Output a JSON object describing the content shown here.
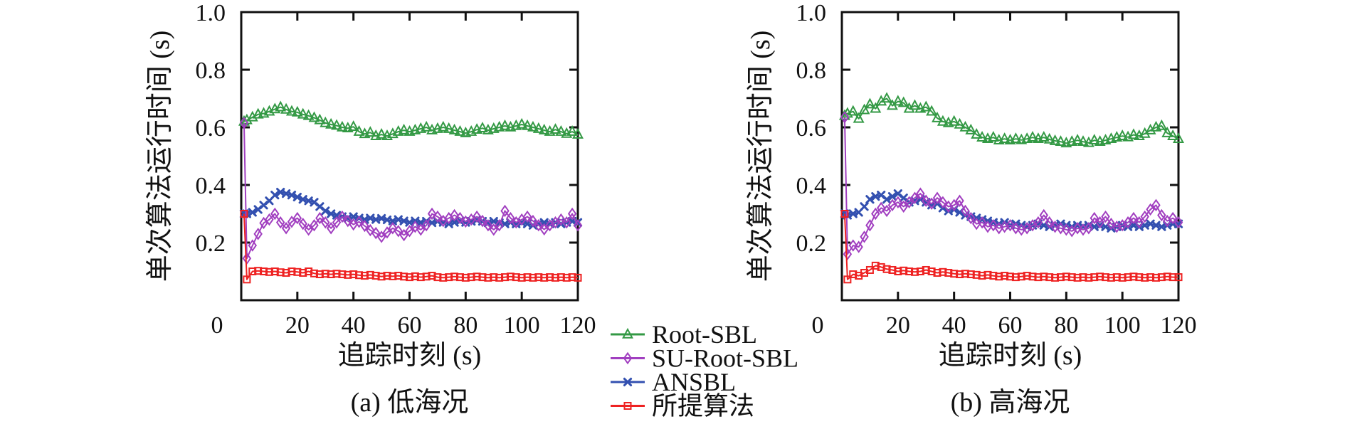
{
  "figure": {
    "background": "#ffffff",
    "axis_color": "#111111"
  },
  "legend": {
    "position": "bottom-center",
    "entries": [
      {
        "id": "root-sbl",
        "label": "Root-SBL",
        "color": "#339944",
        "marker": "triangle-open"
      },
      {
        "id": "su-root-sbl",
        "label": "SU-Root-SBL",
        "color": "#A13FC0",
        "marker": "diamond-open"
      },
      {
        "id": "ansbl",
        "label": "ANSBL",
        "color": "#3350B0",
        "marker": "x-cross"
      },
      {
        "id": "proposed",
        "label": "所提算法",
        "color": "#EE2222",
        "marker": "square-open"
      }
    ]
  },
  "chart_data": [
    {
      "id": "a",
      "type": "line",
      "caption": "(a) 低海况",
      "xlabel": "追踪时刻 (s)",
      "ylabel": "单次算法运行时间 (s)",
      "xlim": [
        0,
        120
      ],
      "ylim": [
        0,
        1.0
      ],
      "xticks": [
        0,
        20,
        40,
        60,
        80,
        100,
        120
      ],
      "yticks": [
        0.2,
        0.4,
        0.6,
        0.8,
        1.0
      ],
      "grid": false,
      "x": [
        1,
        2,
        4,
        6,
        8,
        10,
        12,
        14,
        16,
        18,
        20,
        22,
        24,
        26,
        28,
        30,
        32,
        34,
        36,
        38,
        40,
        42,
        44,
        46,
        48,
        50,
        52,
        54,
        56,
        58,
        60,
        62,
        64,
        66,
        68,
        70,
        72,
        74,
        76,
        78,
        80,
        82,
        84,
        86,
        88,
        90,
        92,
        94,
        96,
        98,
        100,
        102,
        104,
        106,
        108,
        110,
        112,
        114,
        116,
        118,
        120
      ],
      "series": [
        {
          "name": "Root-SBL",
          "color": "#339944",
          "marker": "triangle-open",
          "values": [
            0.62,
            0.625,
            0.635,
            0.645,
            0.648,
            0.655,
            0.663,
            0.67,
            0.662,
            0.655,
            0.652,
            0.645,
            0.64,
            0.633,
            0.625,
            0.615,
            0.61,
            0.606,
            0.6,
            0.597,
            0.602,
            0.585,
            0.577,
            0.582,
            0.57,
            0.575,
            0.57,
            0.577,
            0.585,
            0.59,
            0.585,
            0.59,
            0.595,
            0.6,
            0.59,
            0.595,
            0.6,
            0.595,
            0.59,
            0.585,
            0.58,
            0.585,
            0.592,
            0.597,
            0.59,
            0.595,
            0.6,
            0.605,
            0.6,
            0.605,
            0.61,
            0.605,
            0.6,
            0.595,
            0.59,
            0.585,
            0.592,
            0.585,
            0.578,
            0.585,
            0.575
          ]
        },
        {
          "name": "ANSBL",
          "color": "#3350B0",
          "marker": "x-cross",
          "values": [
            0.3,
            0.3,
            0.305,
            0.315,
            0.33,
            0.345,
            0.365,
            0.375,
            0.37,
            0.365,
            0.358,
            0.35,
            0.345,
            0.34,
            0.325,
            0.31,
            0.3,
            0.295,
            0.29,
            0.285,
            0.29,
            0.285,
            0.28,
            0.285,
            0.28,
            0.284,
            0.279,
            0.275,
            0.28,
            0.275,
            0.27,
            0.275,
            0.27,
            0.274,
            0.269,
            0.274,
            0.27,
            0.265,
            0.27,
            0.275,
            0.27,
            0.274,
            0.279,
            0.274,
            0.269,
            0.274,
            0.269,
            0.265,
            0.27,
            0.265,
            0.27,
            0.265,
            0.26,
            0.265,
            0.27,
            0.265,
            0.27,
            0.265,
            0.27,
            0.274,
            0.27
          ]
        },
        {
          "name": "SU-Root-SBL",
          "color": "#A13FC0",
          "marker": "diamond-open",
          "values": [
            0.615,
            0.145,
            0.19,
            0.23,
            0.268,
            0.28,
            0.3,
            0.27,
            0.25,
            0.272,
            0.285,
            0.265,
            0.245,
            0.26,
            0.285,
            0.27,
            0.25,
            0.27,
            0.29,
            0.275,
            0.263,
            0.272,
            0.258,
            0.243,
            0.233,
            0.22,
            0.235,
            0.25,
            0.24,
            0.226,
            0.24,
            0.255,
            0.245,
            0.26,
            0.3,
            0.29,
            0.275,
            0.285,
            0.295,
            0.285,
            0.273,
            0.28,
            0.29,
            0.275,
            0.26,
            0.245,
            0.26,
            0.31,
            0.285,
            0.27,
            0.28,
            0.29,
            0.275,
            0.26,
            0.246,
            0.26,
            0.27,
            0.28,
            0.27,
            0.3,
            0.26
          ]
        },
        {
          "name": "所提算法",
          "color": "#EE2222",
          "marker": "square-open",
          "values": [
            0.3,
            0.072,
            0.1,
            0.102,
            0.1,
            0.098,
            0.1,
            0.097,
            0.095,
            0.1,
            0.098,
            0.095,
            0.1,
            0.093,
            0.09,
            0.092,
            0.09,
            0.092,
            0.09,
            0.088,
            0.09,
            0.087,
            0.085,
            0.088,
            0.085,
            0.082,
            0.085,
            0.083,
            0.085,
            0.082,
            0.08,
            0.083,
            0.08,
            0.082,
            0.085,
            0.08,
            0.078,
            0.08,
            0.082,
            0.08,
            0.078,
            0.08,
            0.082,
            0.08,
            0.078,
            0.08,
            0.078,
            0.08,
            0.082,
            0.08,
            0.078,
            0.08,
            0.078,
            0.08,
            0.078,
            0.08,
            0.078,
            0.08,
            0.078,
            0.08,
            0.078
          ]
        }
      ]
    },
    {
      "id": "b",
      "type": "line",
      "caption": "(b) 高海况",
      "xlabel": "追踪时刻 (s)",
      "ylabel": "单次算法运行时间 (s)",
      "xlim": [
        0,
        120
      ],
      "ylim": [
        0,
        1.0
      ],
      "xticks": [
        0,
        20,
        40,
        60,
        80,
        100,
        120
      ],
      "yticks": [
        0.2,
        0.4,
        0.6,
        0.8,
        1.0
      ],
      "grid": false,
      "x": [
        1,
        2,
        4,
        6,
        8,
        10,
        12,
        14,
        16,
        18,
        20,
        22,
        24,
        26,
        28,
        30,
        32,
        34,
        36,
        38,
        40,
        42,
        44,
        46,
        48,
        50,
        52,
        54,
        56,
        58,
        60,
        62,
        64,
        66,
        68,
        70,
        72,
        74,
        76,
        78,
        80,
        82,
        84,
        86,
        88,
        90,
        92,
        94,
        96,
        98,
        100,
        102,
        104,
        106,
        108,
        110,
        112,
        114,
        116,
        118,
        120
      ],
      "series": [
        {
          "name": "Root-SBL",
          "color": "#339944",
          "marker": "triangle-open",
          "values": [
            0.64,
            0.648,
            0.655,
            0.63,
            0.66,
            0.68,
            0.665,
            0.69,
            0.7,
            0.675,
            0.69,
            0.685,
            0.665,
            0.675,
            0.665,
            0.67,
            0.655,
            0.632,
            0.62,
            0.615,
            0.62,
            0.61,
            0.6,
            0.59,
            0.575,
            0.565,
            0.56,
            0.565,
            0.555,
            0.56,
            0.555,
            0.56,
            0.556,
            0.56,
            0.565,
            0.56,
            0.565,
            0.558,
            0.553,
            0.55,
            0.545,
            0.55,
            0.555,
            0.55,
            0.546,
            0.555,
            0.55,
            0.555,
            0.56,
            0.565,
            0.57,
            0.566,
            0.574,
            0.57,
            0.578,
            0.59,
            0.6,
            0.605,
            0.58,
            0.57,
            0.56
          ]
        },
        {
          "name": "ANSBL",
          "color": "#3350B0",
          "marker": "x-cross",
          "values": [
            0.3,
            0.295,
            0.3,
            0.305,
            0.325,
            0.35,
            0.36,
            0.365,
            0.35,
            0.36,
            0.37,
            0.355,
            0.34,
            0.345,
            0.35,
            0.34,
            0.33,
            0.335,
            0.32,
            0.31,
            0.315,
            0.305,
            0.295,
            0.29,
            0.285,
            0.28,
            0.275,
            0.27,
            0.265,
            0.27,
            0.26,
            0.265,
            0.26,
            0.255,
            0.26,
            0.265,
            0.26,
            0.255,
            0.26,
            0.265,
            0.26,
            0.255,
            0.26,
            0.255,
            0.26,
            0.255,
            0.26,
            0.255,
            0.25,
            0.255,
            0.26,
            0.255,
            0.26,
            0.255,
            0.26,
            0.265,
            0.26,
            0.255,
            0.26,
            0.265,
            0.265
          ]
        },
        {
          "name": "SU-Root-SBL",
          "color": "#A13FC0",
          "marker": "diamond-open",
          "values": [
            0.635,
            0.16,
            0.19,
            0.185,
            0.22,
            0.26,
            0.3,
            0.32,
            0.31,
            0.33,
            0.34,
            0.325,
            0.34,
            0.355,
            0.37,
            0.345,
            0.335,
            0.355,
            0.34,
            0.325,
            0.33,
            0.345,
            0.31,
            0.285,
            0.265,
            0.27,
            0.255,
            0.26,
            0.25,
            0.255,
            0.26,
            0.25,
            0.245,
            0.25,
            0.26,
            0.27,
            0.295,
            0.27,
            0.255,
            0.25,
            0.245,
            0.24,
            0.25,
            0.245,
            0.25,
            0.285,
            0.27,
            0.29,
            0.265,
            0.255,
            0.26,
            0.27,
            0.285,
            0.27,
            0.29,
            0.315,
            0.33,
            0.295,
            0.275,
            0.285,
            0.27
          ]
        },
        {
          "name": "所提算法",
          "color": "#EE2222",
          "marker": "square-open",
          "values": [
            0.3,
            0.072,
            0.09,
            0.085,
            0.095,
            0.105,
            0.12,
            0.115,
            0.108,
            0.105,
            0.1,
            0.103,
            0.1,
            0.098,
            0.1,
            0.105,
            0.1,
            0.095,
            0.098,
            0.095,
            0.092,
            0.09,
            0.092,
            0.09,
            0.088,
            0.085,
            0.088,
            0.085,
            0.082,
            0.085,
            0.082,
            0.08,
            0.082,
            0.085,
            0.082,
            0.08,
            0.082,
            0.08,
            0.078,
            0.08,
            0.082,
            0.08,
            0.078,
            0.08,
            0.078,
            0.08,
            0.082,
            0.08,
            0.078,
            0.08,
            0.078,
            0.08,
            0.082,
            0.08,
            0.078,
            0.08,
            0.078,
            0.08,
            0.082,
            0.08,
            0.08
          ]
        }
      ]
    }
  ]
}
